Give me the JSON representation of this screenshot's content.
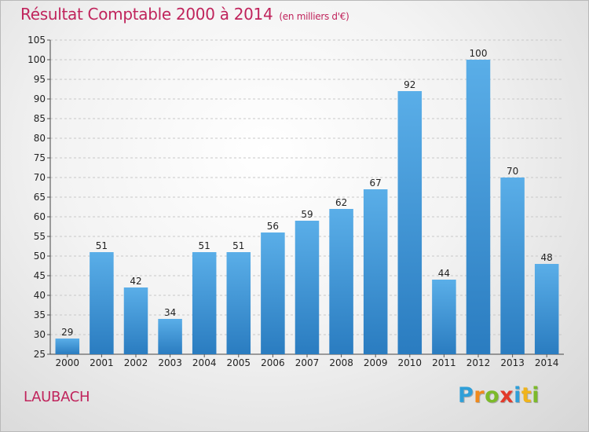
{
  "header": {
    "title": "Résultat Comptable 2000 à 2014",
    "unit": "(en milliers d'€)"
  },
  "commune": "LAUBACH",
  "logo": {
    "letters": [
      "P",
      "r",
      "o",
      "x",
      "i",
      "t",
      "i"
    ],
    "colors": [
      "#2f9fd8",
      "#f08a1c",
      "#7cba2a",
      "#e23a2a",
      "#2f9fd8",
      "#f0b41c",
      "#7cba2a"
    ]
  },
  "colors": {
    "bar_top": "#5aaee8",
    "bar_bottom": "#2a7cc0",
    "grid": "#c8c8c8",
    "accent": "#c0245c"
  },
  "chart_data": {
    "type": "bar",
    "categories": [
      "2000",
      "2001",
      "2002",
      "2003",
      "2004",
      "2005",
      "2006",
      "2007",
      "2008",
      "2009",
      "2010",
      "2011",
      "2012",
      "2013",
      "2014"
    ],
    "values": [
      29,
      51,
      42,
      34,
      51,
      51,
      56,
      59,
      62,
      67,
      92,
      44,
      100,
      70,
      48
    ],
    "ylim": [
      25,
      105
    ],
    "yticks": [
      25,
      30,
      35,
      40,
      45,
      50,
      55,
      60,
      65,
      70,
      75,
      80,
      85,
      90,
      95,
      100,
      105
    ],
    "grid": true,
    "data_labels": true
  }
}
